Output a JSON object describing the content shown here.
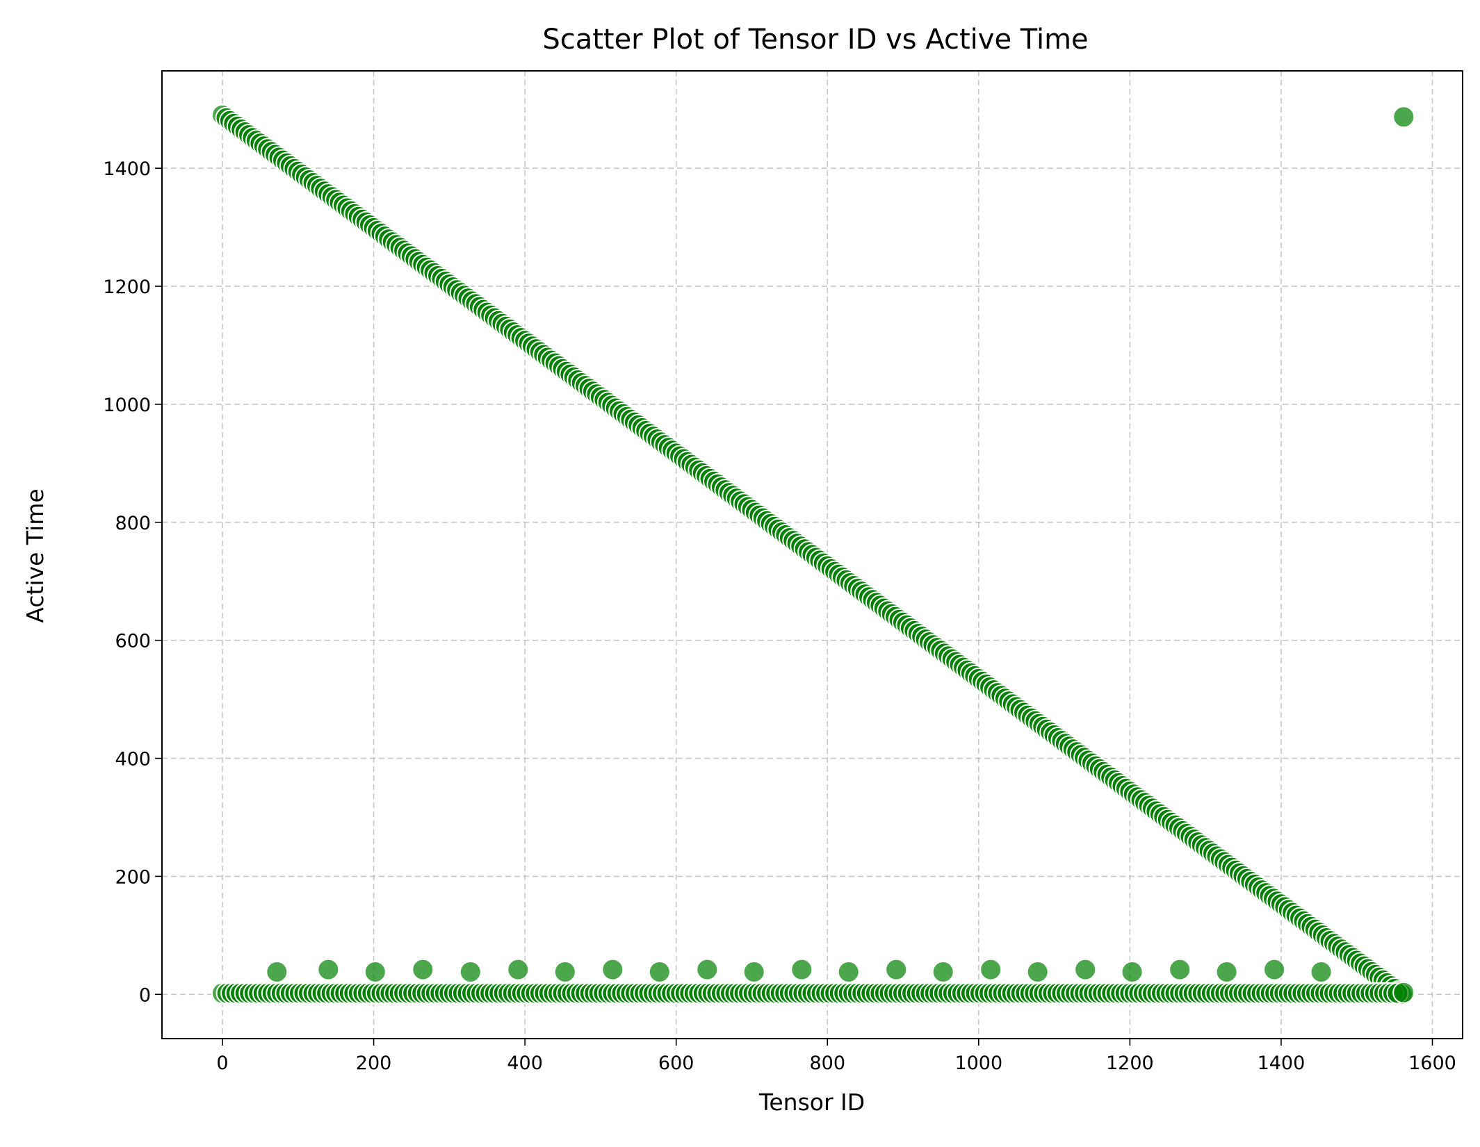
{
  "chart_data": {
    "type": "scatter",
    "title": "Scatter Plot of Tensor ID vs Active Time",
    "xlabel": "Tensor ID",
    "ylabel": "Active Time",
    "xlim": [
      -80,
      1640
    ],
    "ylim": [
      -75,
      1565
    ],
    "xticks": [
      0,
      200,
      400,
      600,
      800,
      1000,
      1200,
      1400,
      1600
    ],
    "yticks": [
      0,
      200,
      400,
      600,
      800,
      1000,
      1200,
      1400
    ],
    "grid": true,
    "marker_color": "#008000",
    "marker_alpha": 0.7,
    "series": [
      {
        "description_role": "diagonal",
        "x_start": 0,
        "x_end": 1560,
        "x_step": 5,
        "y_formula": "1490 - 0.955*x"
      },
      {
        "description_role": "baseline",
        "x_start": 0,
        "x_end": 1555,
        "x_step": 6,
        "y_value": 2
      },
      {
        "description_role": "periodic",
        "x": [
          72,
          140,
          202,
          265,
          328,
          391,
          453,
          516,
          578,
          641,
          703,
          766,
          828,
          891,
          953,
          1016,
          1078,
          1141,
          1203,
          1266,
          1328,
          1391,
          1453
        ],
        "y": [
          38,
          42,
          38,
          42,
          38,
          42,
          38,
          42,
          38,
          42,
          38,
          42,
          38,
          42,
          38,
          42,
          38,
          42,
          38,
          42,
          38,
          42,
          38
        ]
      },
      {
        "description_role": "outlier",
        "x": [
          1562,
          1562
        ],
        "y": [
          1487,
          3
        ]
      }
    ]
  }
}
